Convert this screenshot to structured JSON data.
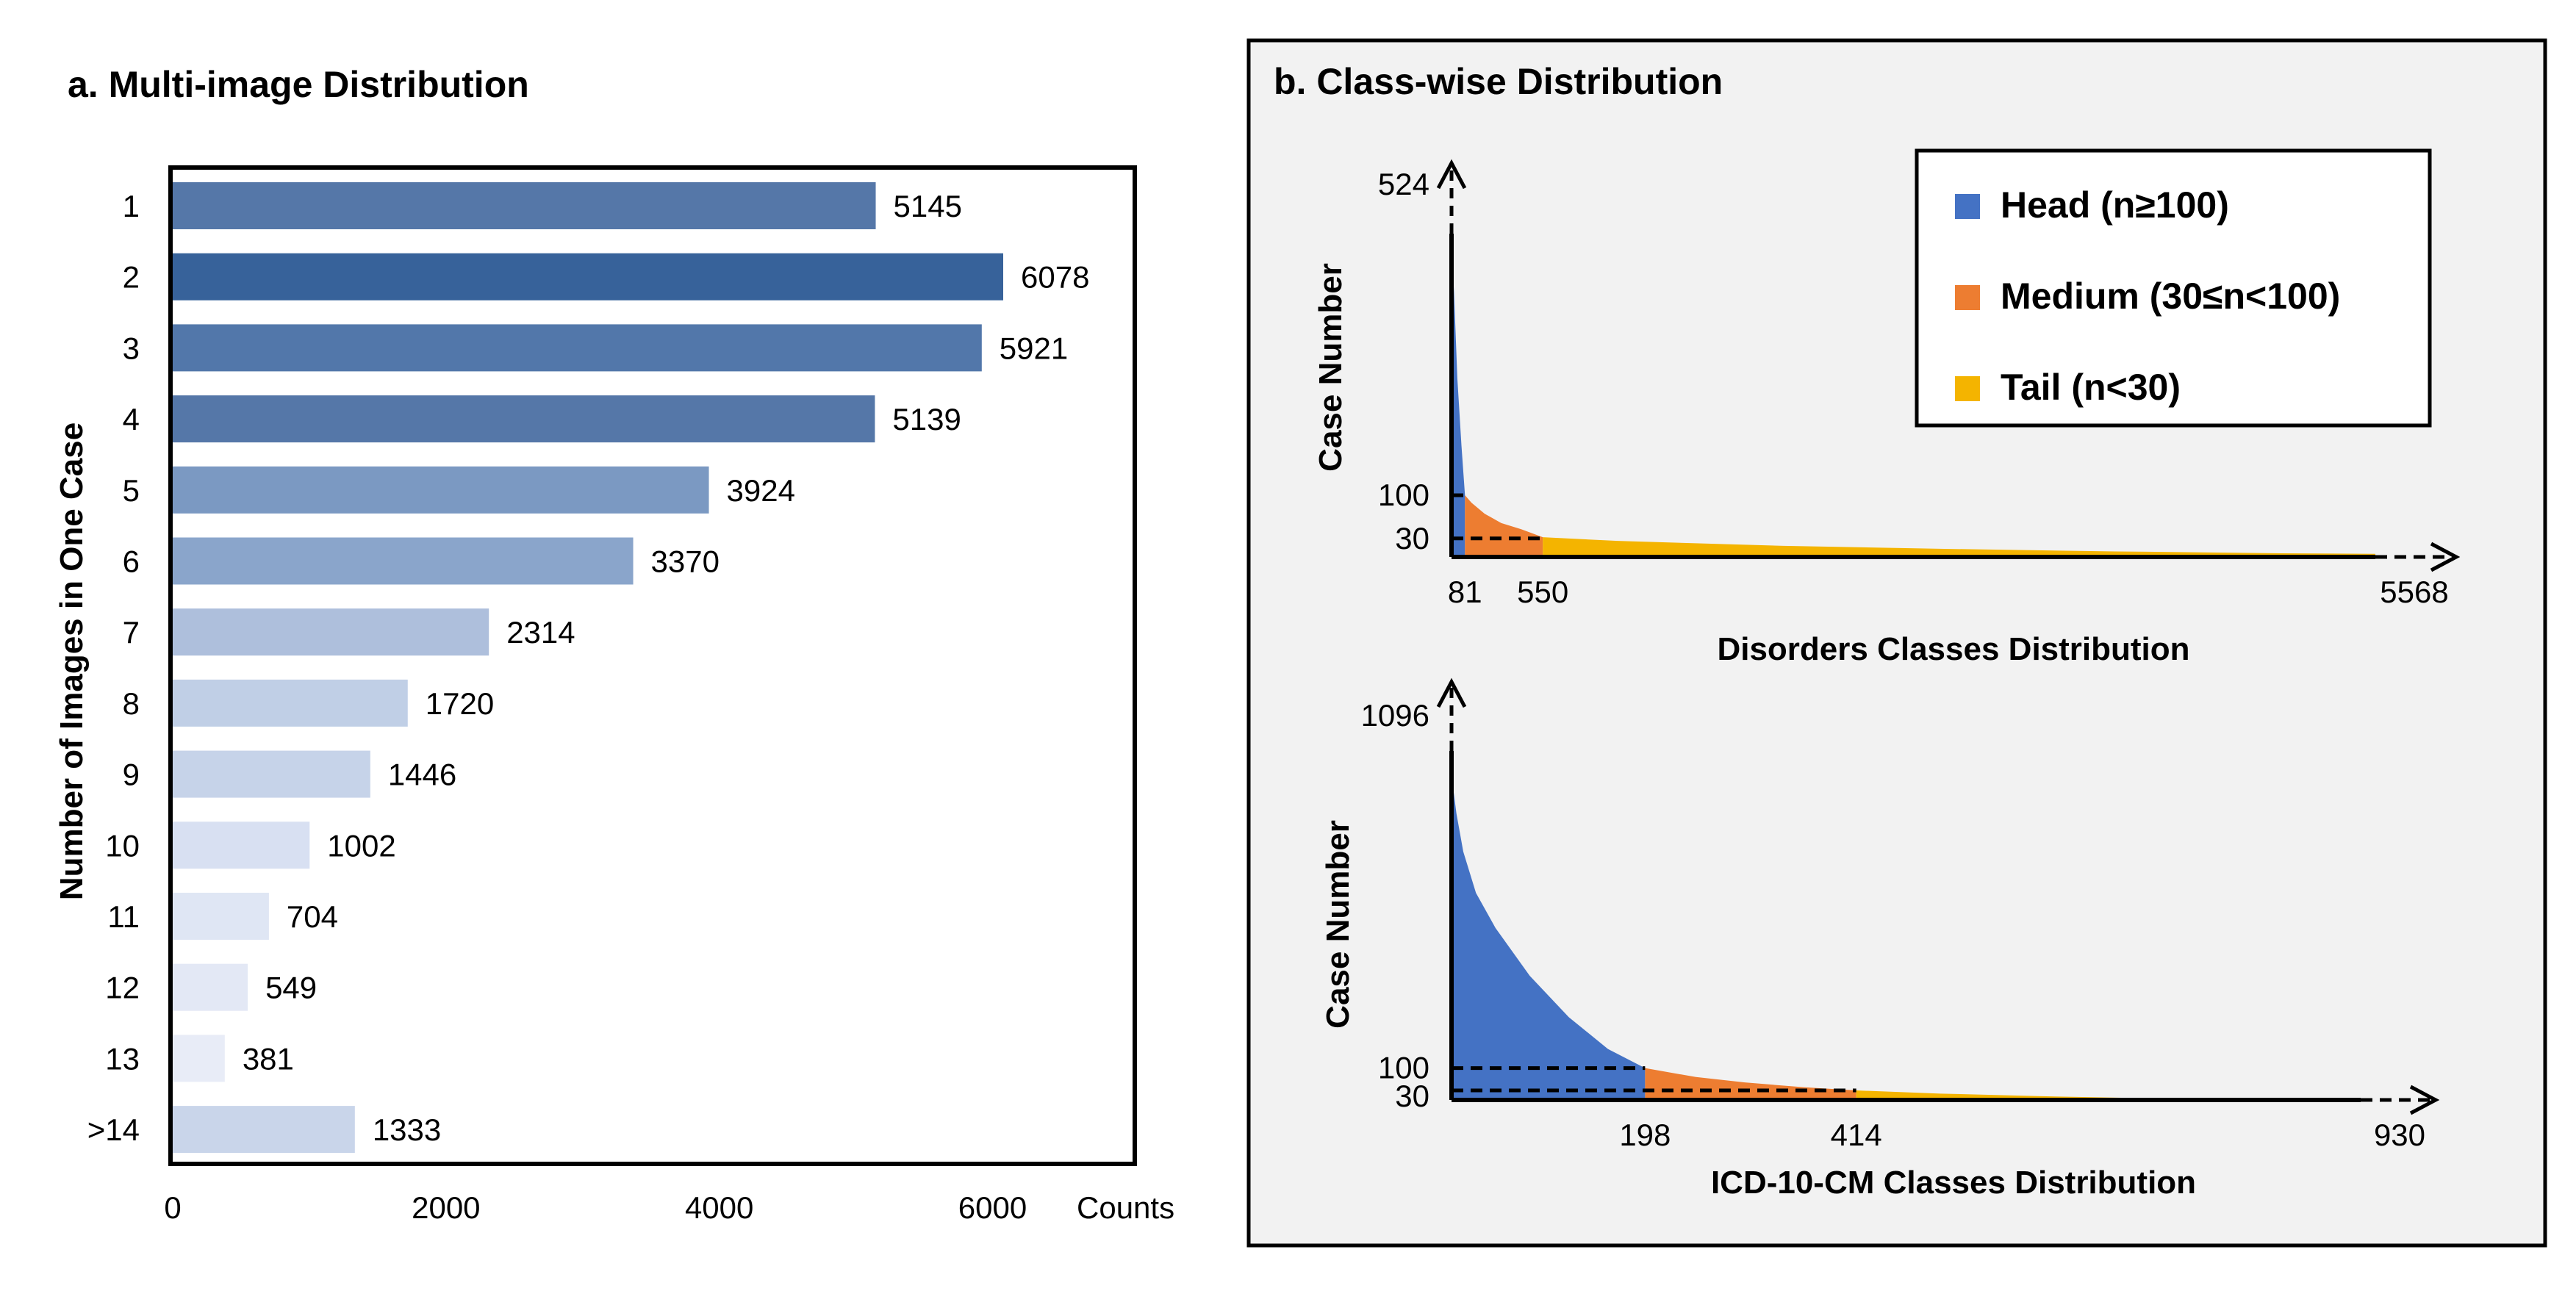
{
  "panel_a": {
    "title": "a. Multi-image Distribution",
    "chart_data": {
      "type": "bar",
      "orientation": "horizontal",
      "categories": [
        "1",
        "2",
        "3",
        "4",
        "5",
        "6",
        "7",
        "8",
        "9",
        "10",
        "11",
        "12",
        "13",
        ">14"
      ],
      "values": [
        5145,
        6078,
        5921,
        5139,
        3924,
        3370,
        2314,
        1720,
        1446,
        1002,
        704,
        549,
        381,
        1333
      ],
      "colors": [
        "#5577a8",
        "#37629a",
        "#5277aa",
        "#5577a8",
        "#7b99c2",
        "#8aa5cb",
        "#aebfdc",
        "#c0cfe6",
        "#c6d3e9",
        "#d8e0f2",
        "#dfe6f4",
        "#e3e8f5",
        "#e8ecf7",
        "#c9d5ea"
      ],
      "xlabel": "Counts",
      "ylabel": "Number of Images in One Case",
      "xlim": [
        0,
        7000
      ],
      "x_ticks": [
        "0",
        "2000",
        "4000",
        "6000"
      ],
      "grid": false
    }
  },
  "panel_b": {
    "title": "b. Class-wise Distribution",
    "legend": {
      "position": "top-right",
      "items": [
        {
          "label": "Head (n≥100)",
          "color": "#4472c4"
        },
        {
          "label": "Medium (30≤n<100)",
          "color": "#ed7d31"
        },
        {
          "label": "Tail (n<30)",
          "color": "#f4b400"
        }
      ]
    },
    "chart_data": [
      {
        "type": "area",
        "title": "Disorders Classes Distribution",
        "ylabel": "Case Number",
        "y_ticks": [
          "524",
          "100",
          "30"
        ],
        "x_ticks": [
          "81",
          "550",
          "5568"
        ],
        "x_max": 5568,
        "y_max": 524,
        "head_end": 81,
        "medium_end": 550,
        "series_points": [
          [
            0,
            500
          ],
          [
            15,
            430
          ],
          [
            35,
            290
          ],
          [
            60,
            180
          ],
          [
            81,
            100
          ],
          [
            120,
            88
          ],
          [
            200,
            70
          ],
          [
            300,
            55
          ],
          [
            420,
            45
          ],
          [
            550,
            32
          ],
          [
            1000,
            26
          ],
          [
            2000,
            18
          ],
          [
            3000,
            13
          ],
          [
            4000,
            9
          ],
          [
            5000,
            6
          ],
          [
            5568,
            5
          ]
        ]
      },
      {
        "type": "area",
        "title": "ICD-10-CM Classes Distribution",
        "ylabel": "Case Number",
        "y_ticks": [
          "1096",
          "100",
          "30"
        ],
        "x_ticks": [
          "198",
          "414",
          "930"
        ],
        "x_max": 930,
        "y_max": 1096,
        "head_end": 198,
        "medium_end": 414,
        "series_points": [
          [
            0,
            1020
          ],
          [
            5,
            900
          ],
          [
            12,
            780
          ],
          [
            25,
            650
          ],
          [
            45,
            540
          ],
          [
            80,
            390
          ],
          [
            120,
            260
          ],
          [
            160,
            160
          ],
          [
            198,
            100
          ],
          [
            250,
            72
          ],
          [
            300,
            55
          ],
          [
            360,
            40
          ],
          [
            414,
            30
          ],
          [
            500,
            20
          ],
          [
            600,
            12
          ],
          [
            700,
            6
          ],
          [
            930,
            0
          ]
        ]
      }
    ]
  }
}
